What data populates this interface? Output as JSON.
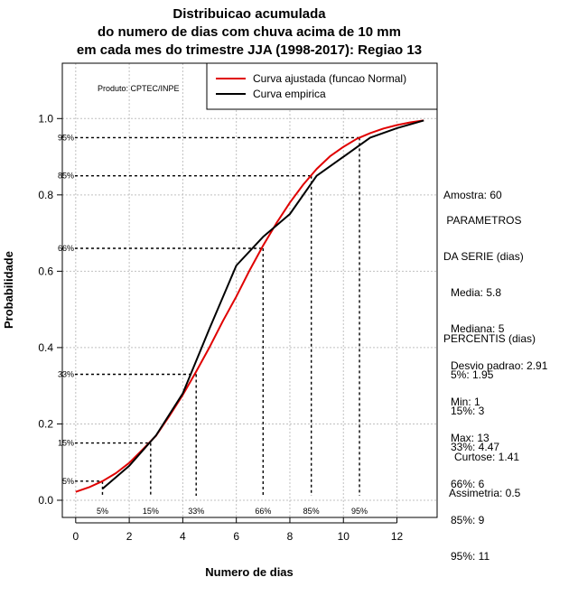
{
  "chart_data": {
    "type": "line",
    "title": [
      "Distribuicao acumulada",
      "do numero de dias com chuva acima de 10 mm",
      "em cada mes do trimestre JJA (1998-2017): Regiao 13"
    ],
    "xlabel": "Numero de dias",
    "ylabel": "Probabilidade",
    "xlim": [
      -0.5,
      13.5
    ],
    "ylim": [
      -0.045,
      1.145
    ],
    "xticks": [
      0,
      2,
      4,
      6,
      8,
      10,
      12
    ],
    "yticks": [
      0.0,
      0.2,
      0.4,
      0.6,
      0.8,
      1.0
    ],
    "xtick_labels": [
      "0",
      "2",
      "4",
      "6",
      "8",
      "10",
      "12"
    ],
    "ytick_labels": [
      "0.0",
      "0.2",
      "0.4",
      "0.6",
      "0.8",
      "1.0"
    ],
    "grid": true,
    "colors": {
      "fitted": "#e00000",
      "empirical": "#000000",
      "grid": "#c0c0c0"
    },
    "legend": {
      "position": "top-right",
      "entries": [
        "Curva ajustada (funcao Normal)",
        "Curva empirica"
      ]
    },
    "product_label": "Produto: CPTEC/INPE",
    "series": [
      {
        "name": "Curva ajustada (funcao Normal)",
        "color": "#e00000",
        "x": [
          0,
          0.5,
          1,
          1.5,
          2,
          2.5,
          3,
          3.5,
          4,
          4.5,
          5,
          5.5,
          6,
          6.5,
          7,
          7.5,
          8,
          8.5,
          9,
          9.5,
          10,
          10.5,
          11,
          11.5,
          12,
          12.5,
          13
        ],
        "y": [
          0.022,
          0.034,
          0.05,
          0.071,
          0.098,
          0.133,
          0.169,
          0.221,
          0.276,
          0.337,
          0.401,
          0.47,
          0.534,
          0.603,
          0.667,
          0.726,
          0.78,
          0.827,
          0.868,
          0.901,
          0.926,
          0.947,
          0.962,
          0.974,
          0.983,
          0.99,
          0.995
        ]
      },
      {
        "name": "Curva empirica",
        "color": "#000000",
        "x": [
          1,
          2,
          3,
          4,
          5,
          6,
          7,
          8,
          9,
          10,
          11,
          12,
          13
        ],
        "y": [
          0.03,
          0.09,
          0.17,
          0.28,
          0.45,
          0.615,
          0.69,
          0.75,
          0.85,
          0.9,
          0.95,
          0.975,
          0.995
        ]
      }
    ],
    "percentile_markers": [
      {
        "label": "5%",
        "p": 0.05,
        "x": 1.0
      },
      {
        "label": "15%",
        "p": 0.15,
        "x": 2.8
      },
      {
        "label": "33%",
        "p": 0.33,
        "x": 4.5
      },
      {
        "label": "66%",
        "p": 0.66,
        "x": 7.0
      },
      {
        "label": "85%",
        "p": 0.85,
        "x": 8.8
      },
      {
        "label": "95%",
        "p": 0.95,
        "x": 10.6
      }
    ]
  },
  "stats": {
    "amostra": "Amostra: 60",
    "params_title_1": " PARAMETROS",
    "params_title_2": "DA SERIE (dias)",
    "media": "Media: 5.8",
    "mediana": "Mediana: 5",
    "desvio": "Desvio padrao: 2.91",
    "min": "Min: 1",
    "max": "Max: 13",
    "percentis_title": "PERCENTIS (dias)",
    "percentis": [
      "5%: 1.95",
      "15%: 3",
      "33%: 4.47",
      "66%: 6",
      "85%: 9",
      "95%: 11"
    ],
    "curtose": "Curtose: 1.41",
    "assimetria": "Assimetria: 0.5"
  }
}
